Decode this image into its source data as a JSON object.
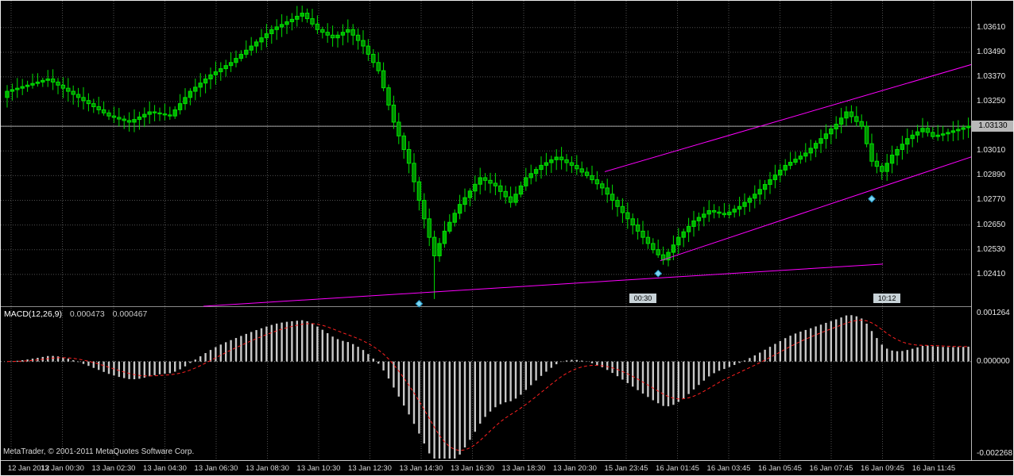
{
  "colors": {
    "background": "#000000",
    "grid": "#4f4f4f",
    "bull": "#00b400",
    "bear": "#008e00",
    "candle_outline": "#00e000",
    "wick": "#00e000",
    "trendline": "#ff00ff",
    "macd_histogram": "#c8c8c8",
    "macd_signal": "#ff2020",
    "axis_text": "#e8e8e8",
    "current_price_line": "#a8a8a8",
    "current_price_tag_bg": "#b8b8b8",
    "separator": "#8a8a8a",
    "marker_fill": "#7ed6f0",
    "marker_stroke": "#1e90c0"
  },
  "indicator": {
    "name": "MACD(12,26,9)",
    "value_main": "0.000473",
    "value_signal": "0.000467"
  },
  "footer": {
    "copyright": "MetaTrader, © 2001-2011 MetaQuotes Software Corp."
  },
  "price_axis": {
    "labels": [
      "1.03610",
      "1.03490",
      "1.03370",
      "1.03250",
      "1.03130",
      "1.03010",
      "1.02890",
      "1.02770",
      "1.02650",
      "1.02530",
      "1.02410"
    ],
    "current_label": "1.03130",
    "current_value": 1.0313
  },
  "macd_axis": {
    "top_label": "0.001264",
    "zero_label": "0.000000",
    "bottom_label": "-0.002268"
  },
  "time_axis": {
    "labels": [
      "12 Jan 2012",
      "13 Jan 00:30",
      "13 Jan 02:30",
      "13 Jan 04:30",
      "13 Jan 06:30",
      "13 Jan 08:30",
      "13 Jan 10:30",
      "13 Jan 12:30",
      "13 Jan 14:30",
      "13 Jan 16:30",
      "13 Jan 18:30",
      "13 Jan 20:30",
      "15 Jan 23:45",
      "16 Jan 01:45",
      "16 Jan 03:45",
      "16 Jan 05:45",
      "16 Jan 07:45",
      "16 Jan 09:45",
      "16 Jan 11:45"
    ]
  },
  "time_tags": [
    {
      "index": 125,
      "label": "00:30"
    },
    {
      "index": 173,
      "label": "10:12"
    }
  ],
  "markers": [
    {
      "index": 81,
      "price": 1.02267
    },
    {
      "index": 128,
      "price": 1.02414
    },
    {
      "index": 170,
      "price": 1.02777
    }
  ],
  "trendlines": [
    {
      "i1": 38.6,
      "p1": 1.02255,
      "i2": 172.2,
      "p2": 1.0246
    },
    {
      "i1": 117.5,
      "p1": 1.02909,
      "i2": 189.7,
      "p2": 1.03431
    },
    {
      "i1": 128.4,
      "p1": 1.02476,
      "i2": 189.7,
      "p2": 1.02982
    }
  ],
  "chart_data": {
    "type": "candlestick",
    "title": "MACD(12,26,9) 0.000473 0.000467",
    "price_scale": {
      "top": 1.0374,
      "bottom": 1.02255
    },
    "macd_scale": {
      "top": 0.001264,
      "bottom": -0.002268
    },
    "macd_params": {
      "fast": 12,
      "slow": 26,
      "signal": 9
    },
    "spike_low": {
      "index": 84,
      "low": 1.0229
    },
    "closes": [
      1.033,
      1.03308,
      1.03315,
      1.03323,
      1.0333,
      1.03338,
      1.03345,
      1.03353,
      1.0336,
      1.03345,
      1.0333,
      1.03315,
      1.033,
      1.03285,
      1.0327,
      1.03255,
      1.0324,
      1.03225,
      1.0321,
      1.03195,
      1.0318,
      1.03173,
      1.03165,
      1.03158,
      1.0315,
      1.03163,
      1.03175,
      1.03188,
      1.032,
      1.03195,
      1.0319,
      1.03185,
      1.0318,
      1.0321,
      1.0324,
      1.0327,
      1.033,
      1.0332,
      1.0334,
      1.0336,
      1.0338,
      1.03395,
      1.0341,
      1.03425,
      1.0344,
      1.0346,
      1.0348,
      1.035,
      1.0352,
      1.0354,
      1.0356,
      1.0358,
      1.036,
      1.03613,
      1.03625,
      1.03638,
      1.0365,
      1.03665,
      1.0368,
      1.03653,
      1.03627,
      1.036,
      1.03587,
      1.03573,
      1.0356,
      1.03573,
      1.03587,
      1.036,
      1.03573,
      1.03547,
      1.0352,
      1.0348,
      1.0344,
      1.034,
      1.03317,
      1.03233,
      1.0315,
      1.03083,
      1.03017,
      1.0295,
      1.0286,
      1.0277,
      1.0268,
      1.0259,
      1.025,
      1.0256,
      1.0262,
      1.02663,
      1.02707,
      1.0275,
      1.02783,
      1.02815,
      1.02848,
      1.0288,
      1.02867,
      1.02853,
      1.0284,
      1.02813,
      1.02787,
      1.0276,
      1.028,
      1.0284,
      1.0288,
      1.029,
      1.0292,
      1.0294,
      1.02953,
      1.02967,
      1.0298,
      1.02967,
      1.02953,
      1.0294,
      1.02923,
      1.02907,
      1.0289,
      1.0287,
      1.0285,
      1.0283,
      1.028,
      1.0277,
      1.0274,
      1.0271,
      1.0268,
      1.0265,
      1.0262,
      1.0259,
      1.0256,
      1.0253,
      1.02505,
      1.0248,
      1.02517,
      1.02553,
      1.0259,
      1.02617,
      1.02643,
      1.0267,
      1.02687,
      1.02703,
      1.0272,
      1.02713,
      1.02707,
      1.027,
      1.02713,
      1.02727,
      1.0274,
      1.0276,
      1.0278,
      1.028,
      1.02823,
      1.02847,
      1.0287,
      1.02893,
      1.02917,
      1.0294,
      1.02955,
      1.0297,
      1.02985,
      1.03,
      1.03023,
      1.03047,
      1.0307,
      1.03093,
      1.03117,
      1.0314,
      1.0317,
      1.032,
      1.03177,
      1.03153,
      1.0313,
      1.03045,
      1.0296,
      1.02935,
      1.0291,
      1.0295,
      1.0299,
      1.03017,
      1.03043,
      1.0307,
      1.03087,
      1.03103,
      1.0312,
      1.031,
      1.0308,
      1.03087,
      1.03093,
      1.031,
      1.03108,
      1.03115,
      1.03123,
      1.0313
    ]
  }
}
